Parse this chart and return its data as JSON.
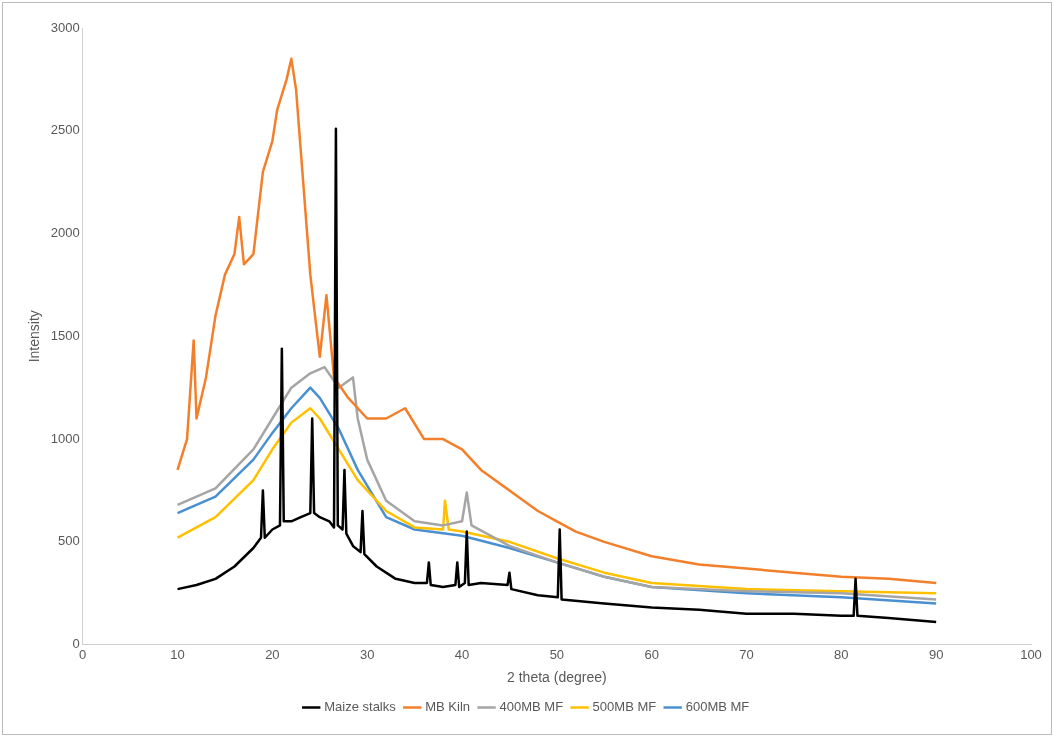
{
  "chart_data": {
    "type": "line",
    "xlabel": "2 theta (degree)",
    "ylabel": "Intensity",
    "xlim": [
      0,
      100
    ],
    "ylim": [
      0,
      3000
    ],
    "xticks": [
      0,
      10,
      20,
      30,
      40,
      50,
      60,
      70,
      80,
      90,
      100
    ],
    "yticks": [
      0,
      500,
      1000,
      1500,
      2000,
      2500,
      3000
    ],
    "legend": "bottom",
    "marker": "none",
    "series": [
      {
        "name": "Maize stalks",
        "color": "#000000",
        "x": [
          10,
          12,
          14,
          16,
          18,
          18.8,
          19,
          19.2,
          20,
          20.8,
          21,
          21.2,
          22,
          23,
          24,
          24.2,
          24.4,
          25,
          26,
          26.5,
          26.7,
          26.9,
          27.4,
          27.6,
          27.8,
          28.5,
          29.3,
          29.5,
          29.7,
          31,
          33,
          35,
          36.3,
          36.5,
          36.7,
          38,
          39.3,
          39.5,
          39.7,
          40.3,
          40.5,
          40.7,
          42,
          44.8,
          45,
          45.2,
          48,
          50.1,
          50.3,
          50.5,
          55,
          60,
          65,
          70,
          75,
          80,
          81.3,
          81.5,
          81.7,
          85,
          90
        ],
        "values": [
          270,
          290,
          320,
          380,
          470,
          520,
          750,
          520,
          560,
          580,
          1440,
          600,
          600,
          620,
          640,
          1100,
          640,
          620,
          600,
          570,
          2510,
          580,
          560,
          850,
          540,
          480,
          450,
          650,
          440,
          380,
          320,
          300,
          300,
          400,
          290,
          280,
          290,
          400,
          280,
          300,
          550,
          290,
          300,
          290,
          350,
          270,
          240,
          230,
          560,
          220,
          200,
          180,
          170,
          150,
          150,
          140,
          140,
          320,
          140,
          130,
          110
        ]
      },
      {
        "name": "MB Kiln",
        "color": "#f47f2a",
        "x": [
          10,
          11,
          11.7,
          12,
          13,
          14,
          15,
          16,
          16.5,
          17,
          18,
          19,
          20,
          20.5,
          21.5,
          22,
          22.5,
          23,
          24,
          25,
          25.7,
          26.5,
          28,
          30,
          32,
          34,
          36,
          38,
          40,
          42,
          45,
          48,
          50,
          52,
          55,
          60,
          65,
          70,
          75,
          80,
          85,
          90
        ],
        "values": [
          850,
          1000,
          1480,
          1100,
          1300,
          1600,
          1800,
          1900,
          2080,
          1850,
          1900,
          2300,
          2450,
          2600,
          2750,
          2850,
          2700,
          2400,
          1800,
          1400,
          1700,
          1300,
          1200,
          1100,
          1100,
          1150,
          1000,
          1000,
          950,
          850,
          750,
          650,
          600,
          550,
          500,
          430,
          390,
          370,
          350,
          330,
          320,
          300
        ]
      },
      {
        "name": "400MB MF",
        "color": "#a5a5a5",
        "x": [
          10,
          14,
          18,
          20,
          22,
          24,
          25.5,
          27,
          28.5,
          29,
          30,
          32,
          35,
          38,
          40,
          40.5,
          41,
          45,
          50,
          55,
          60,
          70,
          80,
          90
        ],
        "values": [
          680,
          760,
          950,
          1100,
          1250,
          1320,
          1350,
          1250,
          1300,
          1100,
          900,
          700,
          600,
          580,
          600,
          740,
          580,
          480,
          400,
          330,
          280,
          260,
          250,
          220
        ]
      },
      {
        "name": "500MB MF",
        "color": "#ffc000",
        "x": [
          10,
          14,
          18,
          20,
          22,
          24,
          25,
          27,
          29,
          32,
          35,
          38,
          38.2,
          38.6,
          40,
          45,
          50,
          55,
          60,
          70,
          80,
          90
        ],
        "values": [
          520,
          620,
          800,
          950,
          1080,
          1150,
          1100,
          950,
          800,
          650,
          570,
          560,
          700,
          560,
          550,
          500,
          420,
          350,
          300,
          270,
          260,
          250
        ]
      },
      {
        "name": "600MB MF",
        "color": "#4a90d0",
        "x": [
          10,
          14,
          18,
          20,
          22,
          24,
          25,
          27,
          29,
          32,
          35,
          40,
          45,
          50,
          55,
          60,
          70,
          80,
          90
        ],
        "values": [
          640,
          720,
          900,
          1030,
          1150,
          1250,
          1200,
          1050,
          850,
          620,
          560,
          530,
          470,
          400,
          330,
          280,
          250,
          230,
          200
        ]
      }
    ]
  }
}
